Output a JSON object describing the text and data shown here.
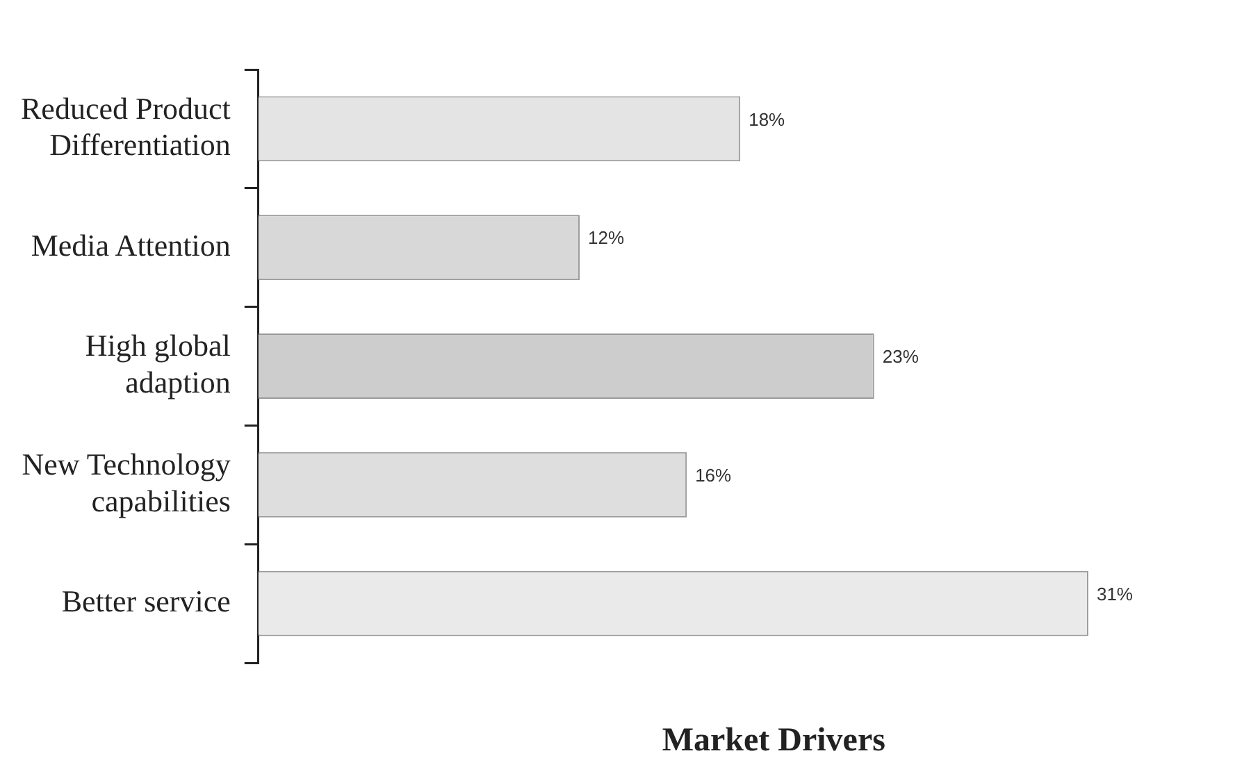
{
  "chart_data": {
    "type": "bar",
    "orientation": "horizontal",
    "xlabel": "Market Drivers",
    "categories": [
      "Reduced Product Differentiation",
      "Media Attention",
      "High global adaption",
      "New Technology capabilities",
      "Better service"
    ],
    "values": [
      18,
      12,
      23,
      16,
      31
    ],
    "colors": [
      "#e4e4e4",
      "#d8d8d8",
      "#cdcdcd",
      "#dedede",
      "#eaeaea"
    ],
    "value_labels": [
      "18%",
      "12%",
      "23%",
      "16%",
      "31%"
    ],
    "grid": false,
    "legend": false
  }
}
